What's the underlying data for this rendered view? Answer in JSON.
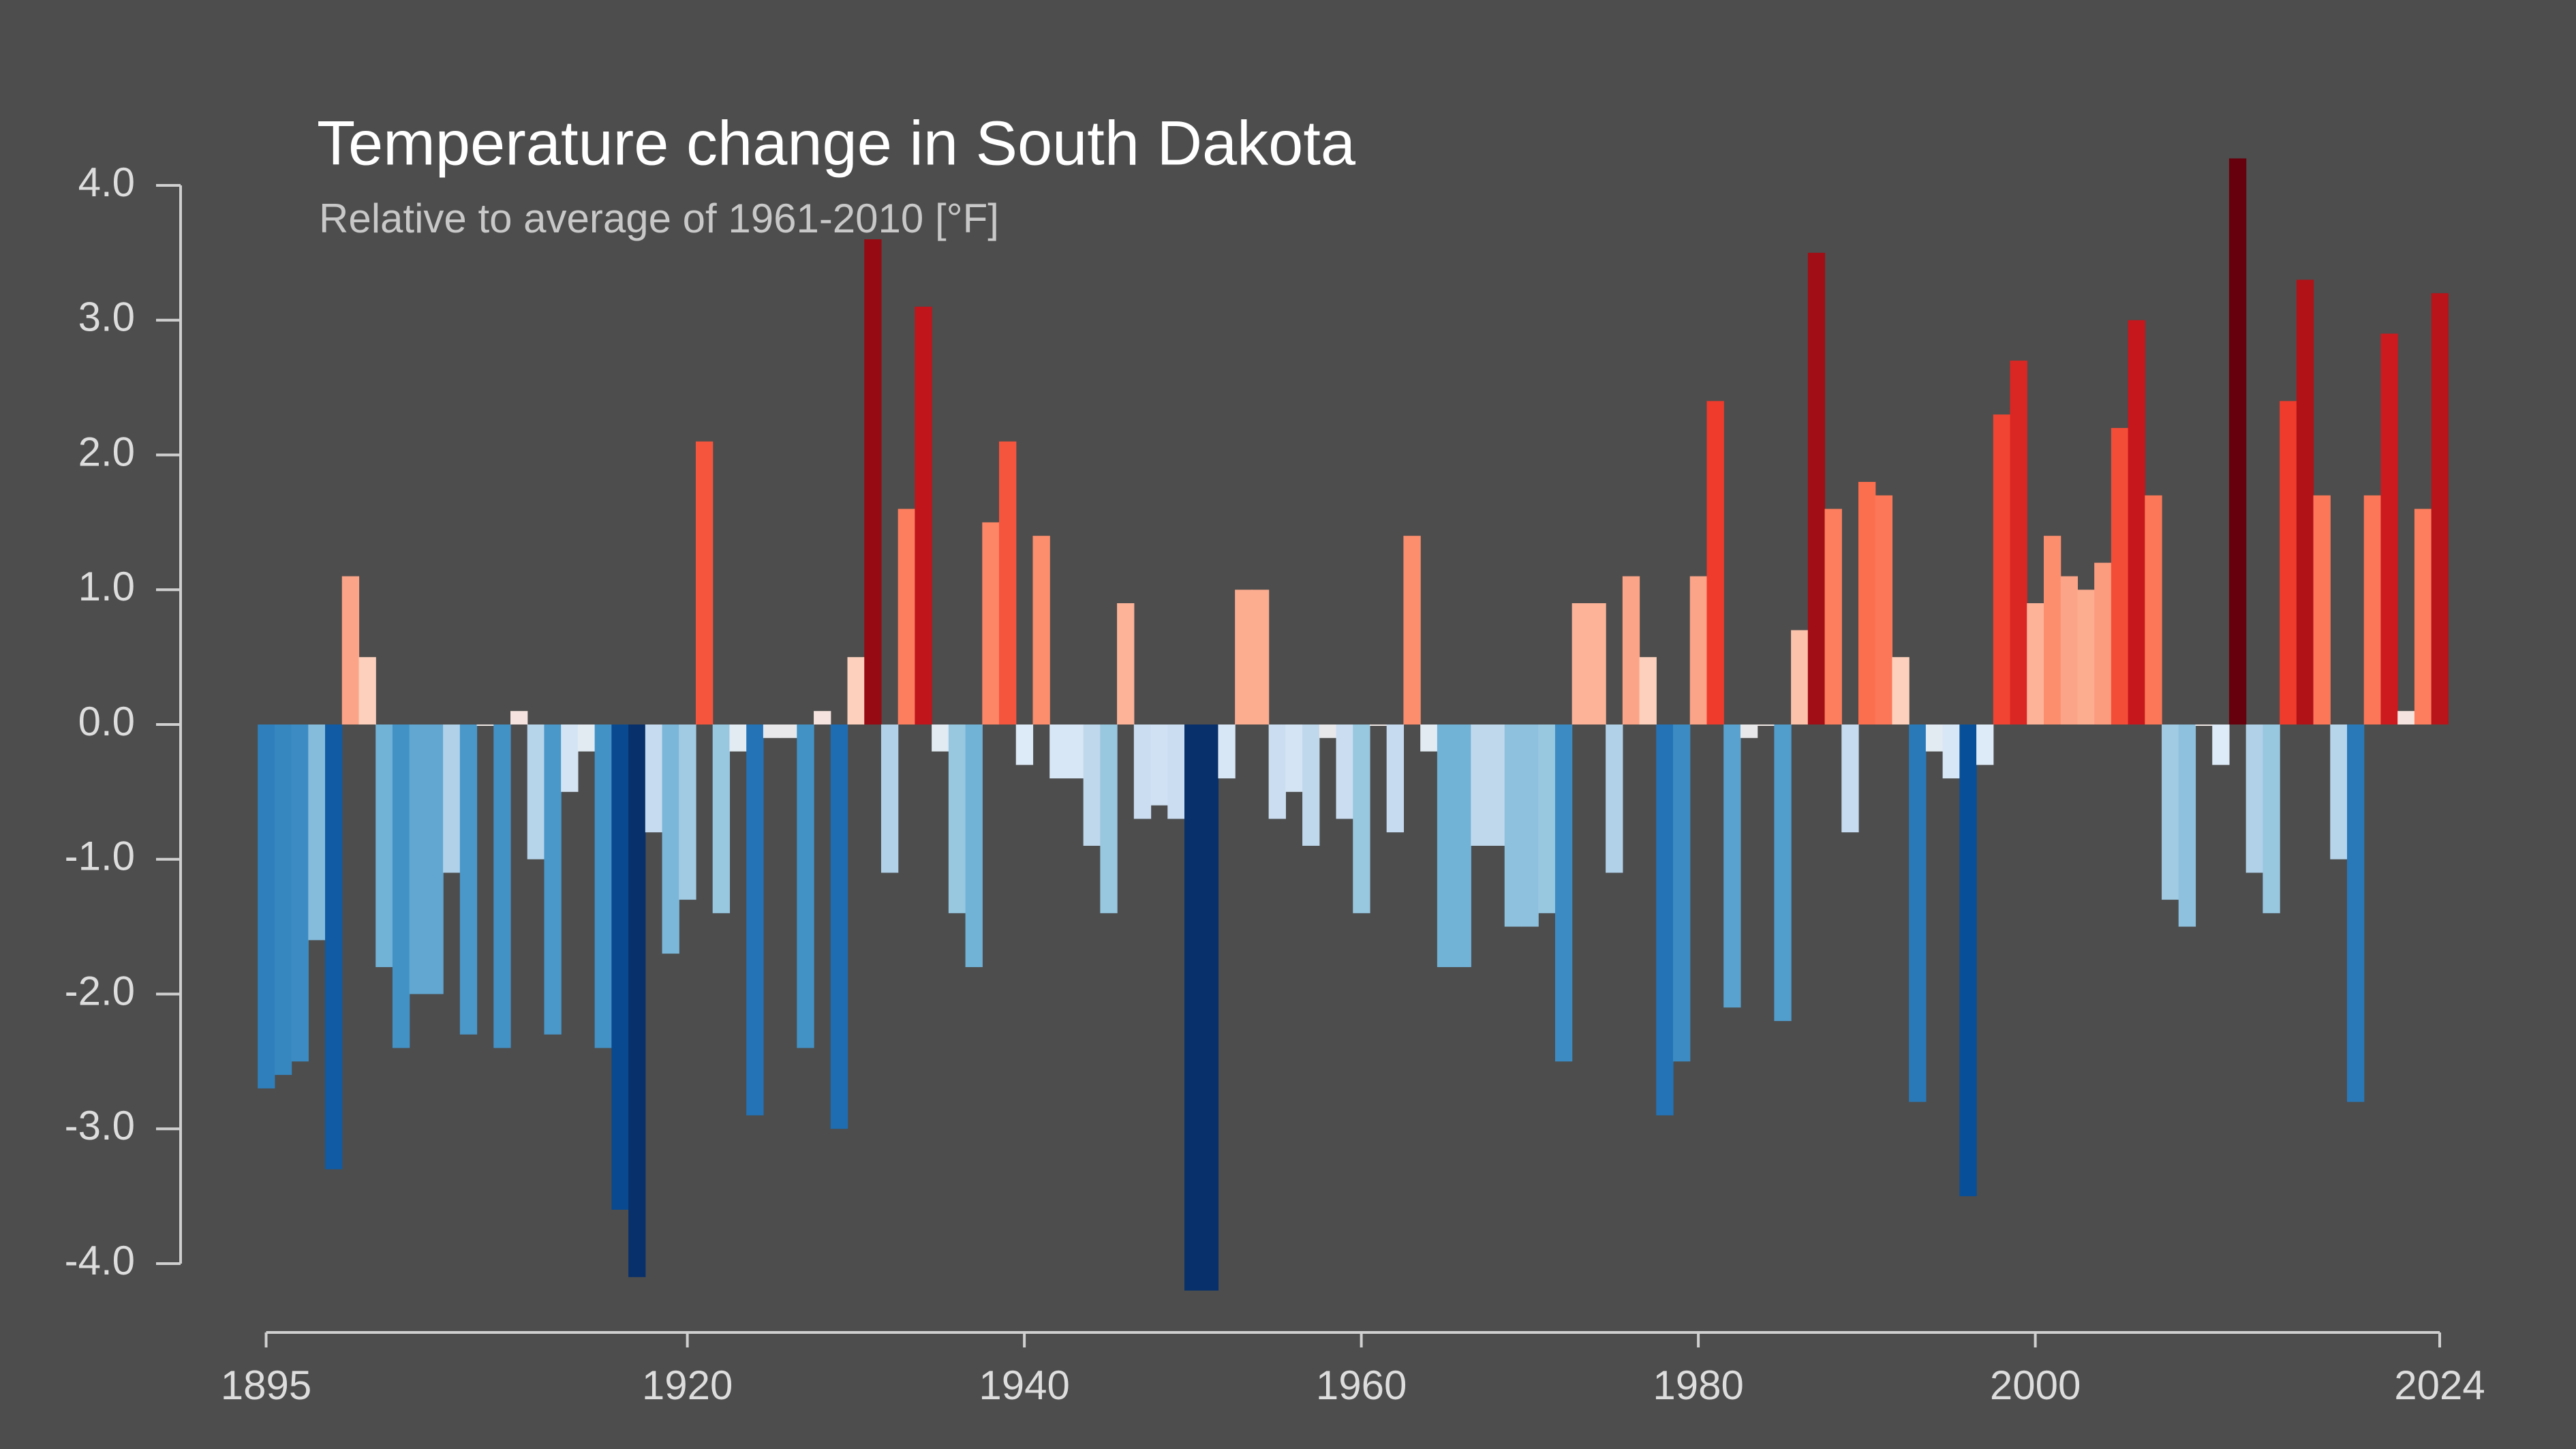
{
  "chart_data": {
    "type": "bar",
    "title": "Temperature change in South Dakota",
    "subtitle": "Relative to average of 1961-2010  [°F]",
    "x": [
      1895,
      1896,
      1897,
      1898,
      1899,
      1900,
      1901,
      1902,
      1903,
      1904,
      1905,
      1906,
      1907,
      1908,
      1909,
      1910,
      1911,
      1912,
      1913,
      1914,
      1915,
      1916,
      1917,
      1918,
      1919,
      1920,
      1921,
      1922,
      1923,
      1924,
      1925,
      1926,
      1927,
      1928,
      1929,
      1930,
      1931,
      1932,
      1933,
      1934,
      1935,
      1936,
      1937,
      1938,
      1939,
      1940,
      1941,
      1942,
      1943,
      1944,
      1945,
      1946,
      1947,
      1948,
      1949,
      1950,
      1951,
      1952,
      1953,
      1954,
      1955,
      1956,
      1957,
      1958,
      1959,
      1960,
      1961,
      1962,
      1963,
      1964,
      1965,
      1966,
      1967,
      1968,
      1969,
      1970,
      1971,
      1972,
      1973,
      1974,
      1975,
      1976,
      1977,
      1978,
      1979,
      1980,
      1981,
      1982,
      1983,
      1984,
      1985,
      1986,
      1987,
      1988,
      1989,
      1990,
      1991,
      1992,
      1993,
      1994,
      1995,
      1996,
      1997,
      1998,
      1999,
      2000,
      2001,
      2002,
      2003,
      2004,
      2005,
      2006,
      2007,
      2008,
      2009,
      2010,
      2011,
      2012,
      2013,
      2014,
      2015,
      2016,
      2017,
      2018,
      2019,
      2020,
      2021,
      2022,
      2023,
      2024
    ],
    "values": [
      -2.7,
      -2.6,
      -2.5,
      -1.6,
      -3.3,
      1.1,
      0.5,
      -1.8,
      -2.4,
      -2.0,
      -2.0,
      -1.1,
      -2.3,
      0.0,
      -2.4,
      0.1,
      -1.0,
      -2.3,
      -0.5,
      -0.2,
      -2.4,
      -3.6,
      -4.1,
      -0.8,
      -1.7,
      -1.3,
      2.1,
      -1.4,
      -0.2,
      -2.9,
      -0.1,
      -0.1,
      -2.4,
      0.1,
      -3.0,
      0.5,
      3.6,
      -1.1,
      1.6,
      3.1,
      -0.2,
      -1.4,
      -1.8,
      1.5,
      2.1,
      -0.3,
      1.4,
      -0.4,
      -0.4,
      -0.9,
      -1.4,
      0.9,
      -0.7,
      -0.6,
      -0.7,
      -4.2,
      -4.2,
      -0.4,
      1.0,
      1.0,
      -0.7,
      -0.5,
      -0.9,
      -0.1,
      -0.7,
      -1.4,
      0.0,
      -0.8,
      1.4,
      -0.2,
      -1.8,
      -1.8,
      -0.9,
      -0.9,
      -1.5,
      -1.5,
      -1.4,
      -2.5,
      0.9,
      0.9,
      -1.1,
      1.1,
      0.5,
      -2.9,
      -2.5,
      1.1,
      2.4,
      -2.1,
      -0.1,
      0.0,
      -2.2,
      0.7,
      3.5,
      1.6,
      -0.8,
      1.8,
      1.7,
      0.5,
      -2.8,
      -0.2,
      -0.4,
      -3.5,
      -0.3,
      2.3,
      2.7,
      0.9,
      1.4,
      1.1,
      1.0,
      1.2,
      2.2,
      3.0,
      1.7,
      -1.3,
      -1.5,
      0.0,
      -0.3,
      4.2,
      -1.1,
      -1.4,
      2.4,
      3.3,
      1.7,
      -1.0,
      -2.8,
      1.7,
      2.9,
      0.1,
      1.6,
      3.2
    ],
    "colors": [
      "#08306b",
      "#08519c",
      "#2171b5",
      "#4292c6",
      "#6baed6",
      "#9ecae1",
      "#c6dbef",
      "#deebf7",
      "#fee0d2",
      "#fcbba1",
      "#fc9272",
      "#fb6a4a",
      "#ef3b2c",
      "#cb181d",
      "#a50f15",
      "#67000d"
    ],
    "xlim": [
      1895,
      2024
    ],
    "xticks": [
      1895,
      1920,
      1940,
      1960,
      1980,
      2000,
      2024
    ],
    "ylim": [
      -4,
      4
    ],
    "yticks": [
      {
        "value": -4,
        "label": "-4.0"
      },
      {
        "value": -3,
        "label": "-3.0"
      },
      {
        "value": -2,
        "label": "-2.0"
      },
      {
        "value": -1,
        "label": "-1.0"
      },
      {
        "value": 0,
        "label": "0.0"
      },
      {
        "value": 1,
        "label": "1.0"
      },
      {
        "value": 2,
        "label": "2.0"
      },
      {
        "value": 3,
        "label": "3.0"
      },
      {
        "value": 4,
        "label": "4.0"
      }
    ],
    "grid": false
  }
}
